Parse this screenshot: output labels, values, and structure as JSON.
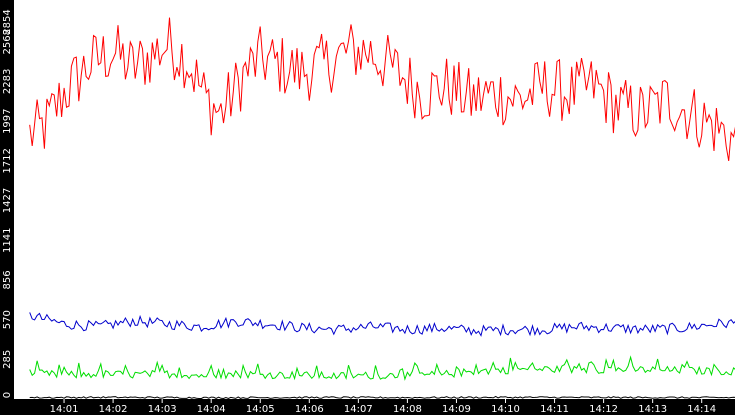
{
  "chart_data": {
    "type": "line",
    "title": "",
    "xlabel": "",
    "ylabel": "",
    "ylim": [
      0,
      2854
    ],
    "xlim": [
      "14:00:19",
      "14:14:57"
    ],
    "y_ticks": [
      0,
      285,
      570,
      856,
      1141,
      1427,
      1712,
      1997,
      2283,
      2568,
      2854
    ],
    "y_tick_labels": [
      "0",
      "285",
      "570",
      "856",
      "1141",
      "1427",
      "1712",
      "1997",
      "2283",
      "2568",
      "2854"
    ],
    "x_ticks": [
      "14:01",
      "14:02",
      "14:03",
      "14:04",
      "14:05",
      "14:06",
      "14:07",
      "14:08",
      "14:09",
      "14:10",
      "14:11",
      "14:12",
      "14:13",
      "14:14"
    ],
    "grid": false,
    "legend": "none",
    "background_color": "#ffffff",
    "series": [
      {
        "color": "#ff0000",
        "x_minutes_from": "14:00",
        "x": [
          0.3,
          0.6,
          1.0,
          1.5,
          2.0,
          2.4,
          2.7,
          3.1,
          3.5,
          3.9,
          4.2,
          4.7,
          5.0,
          5.4,
          5.8,
          6.3,
          6.8,
          7.2,
          7.8,
          8.3,
          8.8,
          9.3,
          9.8,
          10.3,
          10.8,
          11.3,
          11.8,
          12.3,
          12.8,
          13.3,
          13.8,
          14.3,
          14.9
        ],
        "values": [
          1900,
          1950,
          2200,
          2400,
          2500,
          2380,
          2450,
          2550,
          2450,
          2150,
          2050,
          2350,
          2450,
          2400,
          2350,
          2400,
          2500,
          2500,
          2350,
          2200,
          2250,
          2150,
          2200,
          2150,
          2250,
          2200,
          2250,
          2100,
          2050,
          2150,
          2050,
          1950,
          1800
        ]
      },
      {
        "color": "#0000cc",
        "x_minutes_from": "14:00",
        "x": [
          0.3,
          1.0,
          1.7,
          2.4,
          3.1,
          3.8,
          4.5,
          5.2,
          5.9,
          6.6,
          7.3,
          8.0,
          8.7,
          9.4,
          10.1,
          10.8,
          11.5,
          12.2,
          12.9,
          13.6,
          14.3,
          14.9
        ],
        "values": [
          600,
          540,
          520,
          560,
          540,
          520,
          560,
          540,
          510,
          500,
          520,
          500,
          510,
          490,
          500,
          500,
          520,
          510,
          500,
          510,
          540,
          550
        ]
      },
      {
        "color": "#00dd00",
        "x_minutes_from": "14:00",
        "x": [
          0.3,
          1.0,
          1.7,
          2.4,
          3.1,
          3.8,
          4.5,
          5.2,
          5.9,
          6.6,
          7.3,
          8.0,
          8.7,
          9.4,
          10.1,
          10.8,
          11.5,
          12.2,
          12.9,
          13.6,
          14.3,
          14.9
        ],
        "values": [
          190,
          170,
          180,
          175,
          180,
          170,
          180,
          175,
          170,
          165,
          170,
          170,
          175,
          200,
          210,
          215,
          210,
          215,
          210,
          205,
          200,
          200
        ]
      },
      {
        "color": "#000000",
        "x_minutes_from": "14:00",
        "x": [
          0.3,
          2.0,
          4.0,
          6.0,
          8.0,
          10.0,
          12.0,
          14.0,
          14.9
        ],
        "values": [
          10,
          12,
          9,
          11,
          10,
          12,
          11,
          10,
          10
        ]
      }
    ]
  }
}
